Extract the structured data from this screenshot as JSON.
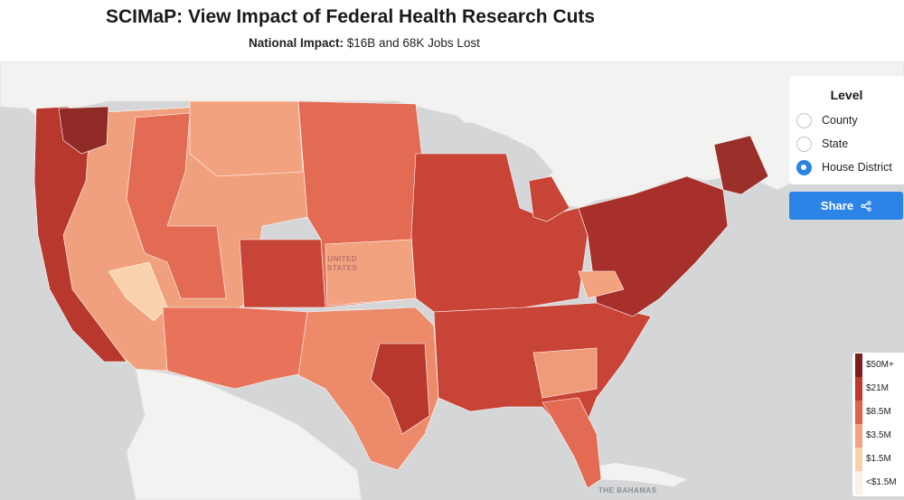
{
  "header": {
    "title": "SCIMaP: View Impact of Federal Health Research Cuts",
    "subtitle_label": "National Impact:",
    "subtitle_value": "$16B and 68K Jobs Lost"
  },
  "map": {
    "labels": {
      "country_line1": "UNITED",
      "country_line2": "STATES",
      "bahamas": "THE BAHAMAS"
    }
  },
  "level_panel": {
    "title": "Level",
    "options": [
      {
        "label": "County",
        "checked": false
      },
      {
        "label": "State",
        "checked": false
      },
      {
        "label": "House District",
        "checked": true
      }
    ]
  },
  "share": {
    "label": "Share",
    "icon": "share-icon"
  },
  "legend": {
    "items": [
      {
        "label": "$50M+",
        "color": "#7f1d1d"
      },
      {
        "label": "$21M",
        "color": "#c0392b"
      },
      {
        "label": "$8.5M",
        "color": "#e3604b"
      },
      {
        "label": "$3.5M",
        "color": "#f3a27f"
      },
      {
        "label": "$1.5M",
        "color": "#f9d2ad"
      },
      {
        "label": "<$1.5M",
        "color": "#fbf1e6"
      }
    ]
  },
  "colors": {
    "water": "#d4d6d8",
    "land_other": "#f2f2f1",
    "accent": "#2c84e6"
  }
}
